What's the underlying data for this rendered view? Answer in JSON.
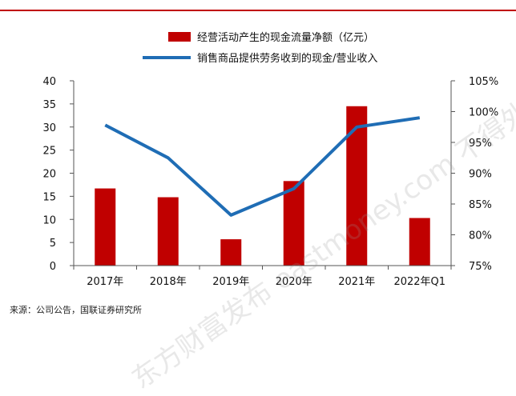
{
  "chart_data": {
    "type": "bar+line",
    "categories": [
      "2017年",
      "2018年",
      "2019年",
      "2020年",
      "2021年",
      "2022年Q1"
    ],
    "series": [
      {
        "name": "经营活动产生的现金流量净额（亿元）",
        "type": "bar",
        "axis": "left",
        "color": "#C00000",
        "values": [
          16.7,
          14.8,
          5.7,
          18.3,
          34.5,
          10.3
        ]
      },
      {
        "name": "销售商品提供劳务收到的现金/营业收入",
        "type": "line",
        "axis": "right",
        "color": "#1F6DB5",
        "values": [
          97.8,
          92.5,
          83.2,
          87.5,
          97.5,
          99.0
        ]
      }
    ],
    "left_axis": {
      "min": 0,
      "max": 40,
      "step": 5,
      "ticks": [
        "0",
        "5",
        "10",
        "15",
        "20",
        "25",
        "30",
        "35",
        "40"
      ]
    },
    "right_axis": {
      "min": 75,
      "max": 105,
      "step": 5,
      "ticks": [
        "75%",
        "80%",
        "85%",
        "90%",
        "95%",
        "100%",
        "105%"
      ]
    },
    "grid": false,
    "legend_position": "top-center"
  },
  "source_note": "来源：公司公告，国联证券研究所",
  "watermark_text": "东方财富发布 eastmoney.com 不得外传"
}
